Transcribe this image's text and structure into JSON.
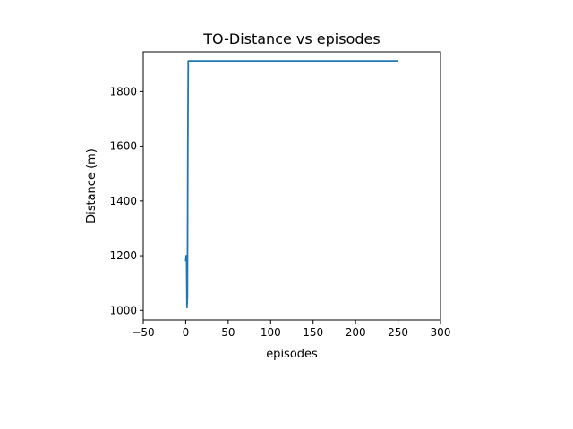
{
  "chart_data": {
    "type": "line",
    "title": "TO-Distance vs episodes",
    "xlabel": "episodes",
    "ylabel": "Distance (m)",
    "xlim": [
      -50,
      300
    ],
    "ylim": [
      965,
      1945
    ],
    "xticks": [
      -50,
      0,
      50,
      100,
      150,
      200,
      250,
      300
    ],
    "xtick_labels": [
      "−50",
      "0",
      "50",
      "100",
      "150",
      "200",
      "250",
      "300"
    ],
    "yticks": [
      1000,
      1200,
      1400,
      1600,
      1800
    ],
    "ytick_labels": [
      "1000",
      "1200",
      "1400",
      "1600",
      "1800"
    ],
    "grid": false,
    "series": [
      {
        "color": "#1f77b4",
        "x": [
          0,
          0.5,
          1,
          1.5,
          2,
          2.5,
          3,
          250
        ],
        "y": [
          1180,
          1200,
          1195,
          1010,
          1050,
          1600,
          1912,
          1912
        ]
      }
    ]
  }
}
